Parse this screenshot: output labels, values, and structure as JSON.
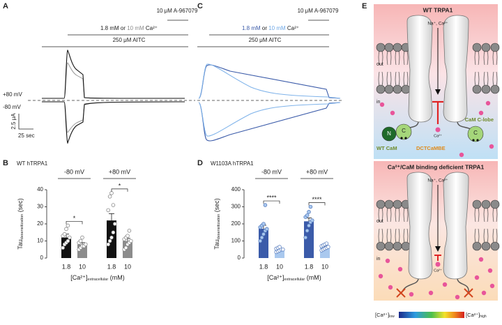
{
  "panels": {
    "A": {
      "label": "A",
      "drug": "10 μM A-967079",
      "calcium": [
        "1.8 mM or ",
        "10 mM",
        " Ca²⁺"
      ],
      "aitc": "250 μM AITC",
      "v_pos": "+80 mV",
      "v_neg": "-80 mV",
      "scale_y": "2.5 μA",
      "scale_x": "25 sec"
    },
    "C": {
      "label": "C",
      "drug": "10 μM A-967079",
      "calcium": [
        "1.8 mM",
        " or ",
        "10 mM",
        " Ca²⁺"
      ],
      "aitc": "250 μM AITC"
    },
    "E": {
      "label": "E",
      "top": {
        "title": "WT TRPA1",
        "ions": "Na⁺, Ca²⁺",
        "out": "out",
        "in": "in",
        "ca": "Ca²⁺",
        "n": "N",
        "c": "C",
        "wt_cam": "WT CaM",
        "dct": "DCTCaMBE",
        "clobe": "CaM C-lobe",
        "c2": "C"
      },
      "bottom": {
        "title": "Ca²⁺/CaM binding deficient TRPA1",
        "ions": "Na⁺, Ca²⁺",
        "out": "out",
        "in": "in",
        "ca": "Ca²⁺"
      },
      "colorbar": {
        "low": "[Ca²⁺]",
        "low_sub": "low",
        "high": "[Ca²⁺]",
        "high_sub": "high"
      }
    }
  },
  "chart_data": [
    {
      "type": "bar",
      "panel": "B",
      "title": "WT hTRPA1",
      "groups": [
        "-80 mV",
        "+80 mV"
      ],
      "categories": [
        "1.8",
        "10",
        "1.8",
        "10"
      ],
      "values": [
        12,
        8,
        22,
        10
      ],
      "errors": [
        2,
        1,
        4,
        1.5
      ],
      "points": [
        [
          6,
          8,
          9,
          10,
          12,
          13,
          14,
          17,
          19
        ],
        [
          5,
          6,
          7,
          7,
          8,
          9,
          10,
          12
        ],
        [
          8,
          10,
          12,
          15,
          20,
          28,
          36,
          38,
          31
        ],
        [
          5,
          6,
          8,
          9,
          10,
          11,
          12,
          13,
          16
        ]
      ],
      "colors": [
        "#111111",
        "#8c8c8c",
        "#111111",
        "#8c8c8c"
      ],
      "point_fill": [
        "#ffffff",
        "#ffffff",
        "#ffffff",
        "#ffffff"
      ],
      "point_stroke": [
        "#888888",
        "#888888",
        "#888888",
        "#888888"
      ],
      "ylim": [
        0,
        40
      ],
      "yticks": [
        0,
        10,
        20,
        30,
        40
      ],
      "ylabel": {
        "main": "Tau",
        "sub": "desensitization",
        "unit": " (sec)"
      },
      "xlabel": {
        "main": "[Ca²⁺]",
        "sub": "extracellular",
        "unit": " (mM)"
      },
      "significance": [
        "*",
        "*"
      ]
    },
    {
      "type": "bar",
      "panel": "D",
      "title": "W1103A hTRPA1",
      "groups": [
        "-80 mV",
        "+80 mV"
      ],
      "categories": [
        "1.8",
        "10",
        "1.8",
        "10"
      ],
      "values": [
        172,
        50,
        215,
        65
      ],
      "errors": [
        20,
        4,
        20,
        5
      ],
      "points": [
        [
          100,
          120,
          140,
          160,
          170,
          180,
          190,
          200,
          310
        ],
        [
          35,
          40,
          45,
          50,
          50,
          55,
          60,
          65
        ],
        [
          120,
          160,
          190,
          210,
          220,
          240,
          250,
          270,
          300
        ],
        [
          45,
          50,
          55,
          60,
          65,
          70,
          75,
          80,
          85
        ]
      ],
      "colors": [
        "#3b5ba9",
        "#a9c8ee",
        "#3b5ba9",
        "#a9c8ee"
      ],
      "point_fill": [
        "#a9c8ee",
        "#ffffff",
        "#a9c8ee",
        "#ffffff"
      ],
      "point_stroke": [
        "#5a7fc0",
        "#5a7fc0",
        "#5a7fc0",
        "#5a7fc0"
      ],
      "ylim": [
        0,
        400
      ],
      "yticks": [
        0,
        100,
        200,
        300,
        400
      ],
      "ylabel": {
        "main": "Tau",
        "sub": "desensitization",
        "unit": " (sec)"
      },
      "xlabel": {
        "main": "[Ca²⁺]",
        "sub": "extracellular",
        "unit": " (mM)"
      },
      "significance": [
        "****",
        "****"
      ]
    }
  ]
}
